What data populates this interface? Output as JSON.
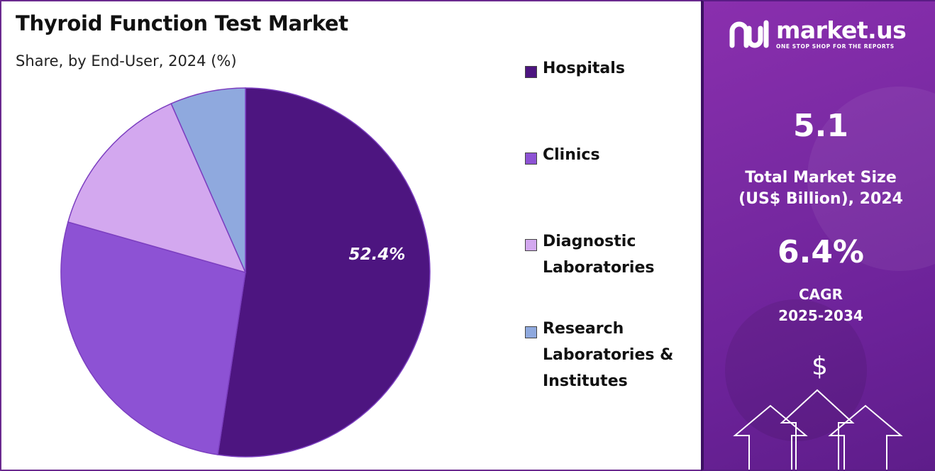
{
  "chart_data": {
    "type": "pie",
    "title": "Thyroid Function Test Market",
    "subtitle": "Share, by End-User, 2024 (%)",
    "series": [
      {
        "name": "Hospitals",
        "value": 52.4,
        "color": "#4d1580",
        "label": "52.4%"
      },
      {
        "name": "Clinics",
        "value": 27.0,
        "color": "#8d52d4",
        "label": ""
      },
      {
        "name": "Diagnostic Laboratories",
        "value": 14.0,
        "color": "#d3a8ef",
        "label": ""
      },
      {
        "name": "Research Laboratories & Institutes",
        "value": 6.6,
        "color": "#8fa9de",
        "label": ""
      }
    ],
    "legend_placement": "right"
  },
  "legend": [
    {
      "line1": "Hospitals",
      "line2": "",
      "line3": "",
      "color": "#4d1580"
    },
    {
      "line1": "Clinics",
      "line2": "",
      "line3": "",
      "color": "#8d52d4"
    },
    {
      "line1": "Diagnostic",
      "line2": "Laboratories",
      "line3": "",
      "color": "#d3a8ef"
    },
    {
      "line1": "Research",
      "line2": "Laboratories &",
      "line3": "Institutes",
      "color": "#8fa9de"
    }
  ],
  "panel": {
    "brand_name": "market.us",
    "brand_tagline": "ONE STOP SHOP FOR THE REPORTS",
    "market_size_value": "5.1",
    "market_size_label_1": "Total Market Size",
    "market_size_label_2": "(US$ Billion), 2024",
    "cagr_value": "6.4%",
    "cagr_label_1": "CAGR",
    "cagr_label_2": "2025-2034",
    "dollar_symbol": "$",
    "icons": [
      "market-us-logo-icon",
      "dollar-icon",
      "up-arrow-icon"
    ]
  }
}
